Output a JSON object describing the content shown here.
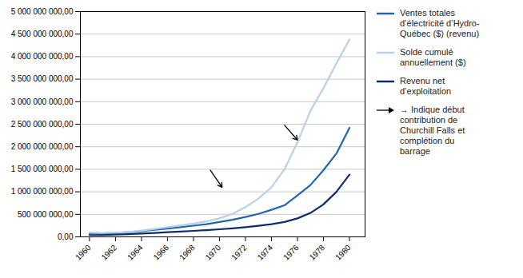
{
  "chart_data": {
    "type": "line",
    "x": [
      1960,
      1961,
      1962,
      1963,
      1964,
      1965,
      1966,
      1967,
      1968,
      1969,
      1970,
      1971,
      1972,
      1973,
      1974,
      1975,
      1976,
      1977,
      1978,
      1979,
      1980
    ],
    "series": [
      {
        "name": "Ventes totales\nd’électricité d’Hydro-\nQuébec ($) (revenu)",
        "color": "#2266aa",
        "values": [
          75000000,
          78000000,
          88000000,
          105000000,
          128000000,
          155000000,
          185000000,
          215000000,
          248000000,
          280000000,
          330000000,
          380000000,
          440000000,
          510000000,
          600000000,
          700000000,
          920000000,
          1150000000,
          1480000000,
          1850000000,
          2420000000
        ]
      },
      {
        "name": "Solde cumulé\nannuellement ($)",
        "color": "#b8d0e8",
        "values": [
          95000000,
          85000000,
          90000000,
          110000000,
          140000000,
          175000000,
          215000000,
          255000000,
          295000000,
          345000000,
          410000000,
          510000000,
          660000000,
          850000000,
          1100000000,
          1500000000,
          2100000000,
          2800000000,
          3300000000,
          3850000000,
          4380000000
        ]
      },
      {
        "name": "Revenu net\nd’exploitation",
        "color": "#0d2d6b",
        "values": [
          40000000,
          42000000,
          50000000,
          60000000,
          73000000,
          88000000,
          103000000,
          118000000,
          133000000,
          150000000,
          168000000,
          190000000,
          215000000,
          245000000,
          280000000,
          330000000,
          410000000,
          530000000,
          720000000,
          1000000000,
          1380000000
        ]
      }
    ],
    "arrows": {
      "name": "→ Indique début\ncontribution de\nChurchill Falls et\ncomplétion du\nbarrage",
      "color": "#000000",
      "points": [
        {
          "x1": 1969.3,
          "y1": 1480000000,
          "x2": 1970.2,
          "y2": 1100000000
        },
        {
          "x1": 1975.0,
          "y1": 2480000000,
          "x2": 1976.0,
          "y2": 2150000000
        }
      ]
    },
    "xlim": [
      1959.3,
      1981.2
    ],
    "xticks": [
      1960,
      1962,
      1964,
      1966,
      1968,
      1970,
      1972,
      1974,
      1976,
      1978,
      1980
    ],
    "ylim": [
      0,
      5000000000
    ],
    "yticks": [
      {
        "value": 0,
        "label": "0,00"
      },
      {
        "value": 500000000,
        "label": "500 000 000,00"
      },
      {
        "value": 1000000000,
        "label": "1 000 000 000,00"
      },
      {
        "value": 1500000000,
        "label": "1 500 000 000,00"
      },
      {
        "value": 2000000000,
        "label": "2 000 000 000,00"
      },
      {
        "value": 2500000000,
        "label": "2 500 000 000,00"
      },
      {
        "value": 3000000000,
        "label": "3 000 000 000,00"
      },
      {
        "value": 3500000000,
        "label": "3 500 000 000,00"
      },
      {
        "value": 4000000000,
        "label": "4 000 000 000,00"
      },
      {
        "value": 4500000000,
        "label": "4 500 000 000,00"
      },
      {
        "value": 5000000000,
        "label": "5 000 000 000,00"
      }
    ],
    "grid": "y",
    "legend": "right"
  }
}
